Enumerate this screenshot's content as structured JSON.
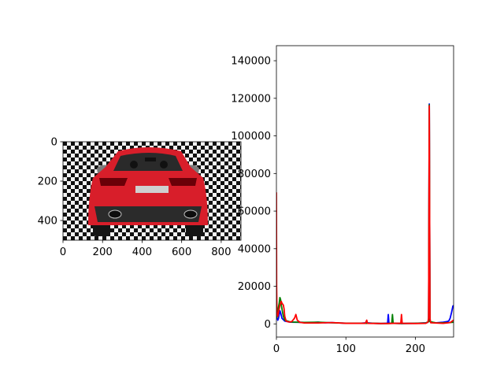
{
  "chart_data": [
    {
      "type": "image",
      "panel": "left",
      "content": "rear view of a red car on a checkerboard background",
      "xlim": [
        0,
        900
      ],
      "ylim": [
        500,
        0
      ],
      "xticks": [
        "0",
        "200",
        "400",
        "600",
        "800"
      ],
      "yticks": [
        "0",
        "200",
        "400"
      ],
      "colors": {
        "car_body": "#d81e2a",
        "checker_dark": "#111111",
        "checker_light": "#f2f2f2"
      }
    },
    {
      "type": "line",
      "panel": "right",
      "xlim": [
        0,
        255
      ],
      "ylim": [
        -7000,
        148000
      ],
      "xticks": [
        "0",
        "100",
        "200"
      ],
      "yticks": [
        "0",
        "20000",
        "40000",
        "60000",
        "80000",
        "100000",
        "120000",
        "140000"
      ],
      "series": [
        {
          "color": "#0000ff",
          "points": [
            [
              0,
              4000
            ],
            [
              1,
              3000
            ],
            [
              2,
              2000
            ],
            [
              3,
              3000
            ],
            [
              4,
              5000
            ],
            [
              5,
              7000
            ],
            [
              6,
              6000
            ],
            [
              8,
              3000
            ],
            [
              12,
              1500
            ],
            [
              20,
              900
            ],
            [
              40,
              800
            ],
            [
              50,
              700
            ],
            [
              60,
              900
            ],
            [
              70,
              600
            ],
            [
              80,
              700
            ],
            [
              90,
              500
            ],
            [
              100,
              400
            ],
            [
              120,
              300
            ],
            [
              130,
              600
            ],
            [
              140,
              300
            ],
            [
              150,
              200
            ],
            [
              158,
              300
            ],
            [
              160,
              300
            ],
            [
              161,
              5000
            ],
            [
              162,
              300
            ],
            [
              170,
              300
            ],
            [
              180,
              200
            ],
            [
              200,
              300
            ],
            [
              210,
              500
            ],
            [
              215,
              600
            ],
            [
              218,
              800
            ],
            [
              219,
              1500
            ],
            [
              220,
              117000
            ],
            [
              221,
              1500
            ],
            [
              222,
              800
            ],
            [
              230,
              600
            ],
            [
              240,
              900
            ],
            [
              245,
              1200
            ],
            [
              248,
              1500
            ],
            [
              250,
              3000
            ],
            [
              252,
              6000
            ],
            [
              254,
              9500
            ],
            [
              255,
              9800
            ]
          ]
        },
        {
          "color": "#008000",
          "points": [
            [
              0,
              3000
            ],
            [
              1,
              4000
            ],
            [
              2,
              6000
            ],
            [
              3,
              9000
            ],
            [
              4,
              11000
            ],
            [
              5,
              14000
            ],
            [
              6,
              13000
            ],
            [
              7,
              10000
            ],
            [
              8,
              8000
            ],
            [
              10,
              4000
            ],
            [
              12,
              2000
            ],
            [
              20,
              1000
            ],
            [
              40,
              800
            ],
            [
              60,
              900
            ],
            [
              80,
              600
            ],
            [
              100,
              400
            ],
            [
              120,
              300
            ],
            [
              140,
              300
            ],
            [
              150,
              200
            ],
            [
              160,
              200
            ],
            [
              166,
              300
            ],
            [
              167,
              5000
            ],
            [
              168,
              300
            ],
            [
              180,
              200
            ],
            [
              200,
              300
            ],
            [
              215,
              500
            ],
            [
              219,
              1200
            ],
            [
              220,
              116500
            ],
            [
              221,
              1200
            ],
            [
              230,
              500
            ],
            [
              250,
              700
            ],
            [
              255,
              900
            ]
          ]
        },
        {
          "color": "#ff0000",
          "points": [
            [
              0,
              70000
            ],
            [
              0.3,
              20000
            ],
            [
              0.7,
              8000
            ],
            [
              1,
              5000
            ],
            [
              2,
              4000
            ],
            [
              3,
              6000
            ],
            [
              4,
              8000
            ],
            [
              5,
              10000
            ],
            [
              6,
              11000
            ],
            [
              7,
              12000
            ],
            [
              8,
              11000
            ],
            [
              10,
              10000
            ],
            [
              11,
              8000
            ],
            [
              12,
              4000
            ],
            [
              14,
              1500
            ],
            [
              18,
              1000
            ],
            [
              22,
              1200
            ],
            [
              26,
              3000
            ],
            [
              28,
              5000
            ],
            [
              30,
              2000
            ],
            [
              34,
              800
            ],
            [
              40,
              500
            ],
            [
              60,
              500
            ],
            [
              80,
              700
            ],
            [
              100,
              300
            ],
            [
              128,
              300
            ],
            [
              130,
              2000
            ],
            [
              131,
              300
            ],
            [
              150,
              200
            ],
            [
              160,
              200
            ],
            [
              170,
              300
            ],
            [
              179,
              300
            ],
            [
              180,
              5000
            ],
            [
              181,
              300
            ],
            [
              200,
              200
            ],
            [
              215,
              300
            ],
            [
              218,
              900
            ],
            [
              219,
              3000
            ],
            [
              220,
              116000
            ],
            [
              221,
              3000
            ],
            [
              222,
              600
            ],
            [
              240,
              300
            ],
            [
              250,
              700
            ],
            [
              255,
              2000
            ]
          ]
        }
      ]
    }
  ]
}
